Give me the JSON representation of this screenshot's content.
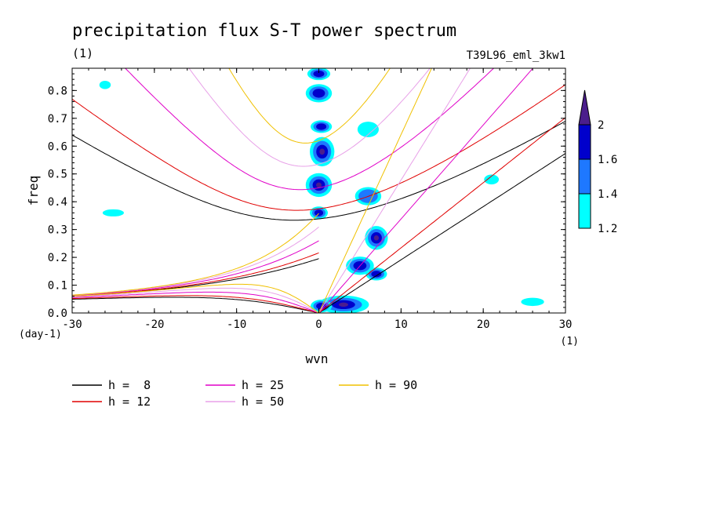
{
  "chart_data": {
    "type": "contour",
    "title": "precipitation flux S-T power spectrum",
    "subtitle_left": "(1)",
    "subtitle_right": "T39L96_eml_3kw1",
    "xlabel": "wvn",
    "ylabel": "freq",
    "x_units": "(1)",
    "y_units": "(day-1)",
    "xlim": [
      -30,
      30
    ],
    "ylim": [
      0,
      0.88
    ],
    "x_ticks": [
      -30,
      -20,
      -10,
      0,
      10,
      20,
      30
    ],
    "x_tick_labels": [
      "-30",
      "-20",
      "-10",
      "0",
      "10",
      "20",
      "30"
    ],
    "y_ticks": [
      0.0,
      0.1,
      0.2,
      0.3,
      0.4,
      0.5,
      0.6,
      0.7,
      0.8
    ],
    "y_tick_labels": [
      "0.0",
      "0.1",
      "0.2",
      "0.3",
      "0.4",
      "0.5",
      "0.6",
      "0.7",
      "0.8"
    ],
    "colorbar": {
      "levels": [
        1.2,
        1.4,
        1.6,
        2
      ],
      "labels": [
        "1.2",
        "1.4",
        "1.6",
        "2"
      ],
      "colors": [
        "#00ffff",
        "#1e78ff",
        "#0000cc",
        "#4b1e8c"
      ]
    },
    "dispersion_curves": [
      {
        "label": "h =  8",
        "h": 8,
        "color": "#000000"
      },
      {
        "label": "h = 12",
        "h": 12,
        "color": "#e00000"
      },
      {
        "label": "h = 25",
        "h": 25,
        "color": "#e000c8"
      },
      {
        "label": "h = 50",
        "h": 50,
        "color": "#e8a0e8"
      },
      {
        "label": "h = 90",
        "h": 90,
        "color": "#f0c000"
      }
    ],
    "shaded_blobs": [
      {
        "x": 0,
        "y": 0.86,
        "level": 1.6,
        "rx": 1.3,
        "ry": 0.02
      },
      {
        "x": 0,
        "y": 0.79,
        "level": 1.6,
        "rx": 1.5,
        "ry": 0.03
      },
      {
        "x": 0.3,
        "y": 0.67,
        "level": 1.6,
        "rx": 1.2,
        "ry": 0.02
      },
      {
        "x": 0.4,
        "y": 0.58,
        "level": 2,
        "rx": 1.4,
        "ry": 0.05
      },
      {
        "x": 0,
        "y": 0.46,
        "level": 2,
        "rx": 1.5,
        "ry": 0.04
      },
      {
        "x": 0,
        "y": 0.36,
        "level": 1.6,
        "rx": 1.0,
        "ry": 0.02
      },
      {
        "x": 7,
        "y": 0.27,
        "level": 2,
        "rx": 1.3,
        "ry": 0.04
      },
      {
        "x": 6,
        "y": 0.42,
        "level": 1.4,
        "rx": 1.5,
        "ry": 0.03
      },
      {
        "x": 5,
        "y": 0.17,
        "level": 1.6,
        "rx": 1.6,
        "ry": 0.03
      },
      {
        "x": 7,
        "y": 0.14,
        "level": 1.6,
        "rx": 1.2,
        "ry": 0.02
      },
      {
        "x": 3,
        "y": 0.03,
        "level": 2,
        "rx": 3.0,
        "ry": 0.03
      },
      {
        "x": 0.3,
        "y": 0.025,
        "level": 1.6,
        "rx": 1.2,
        "ry": 0.02
      },
      {
        "x": 6,
        "y": 0.66,
        "level": 1.2,
        "rx": 1.2,
        "ry": 0.025
      },
      {
        "x": -26,
        "y": 0.82,
        "level": 1.2,
        "rx": 0.6,
        "ry": 0.012
      },
      {
        "x": -25,
        "y": 0.36,
        "level": 1.2,
        "rx": 1.2,
        "ry": 0.01
      },
      {
        "x": 21,
        "y": 0.48,
        "level": 1.2,
        "rx": 0.8,
        "ry": 0.015
      },
      {
        "x": 26,
        "y": 0.04,
        "level": 1.2,
        "rx": 1.3,
        "ry": 0.012
      }
    ]
  }
}
